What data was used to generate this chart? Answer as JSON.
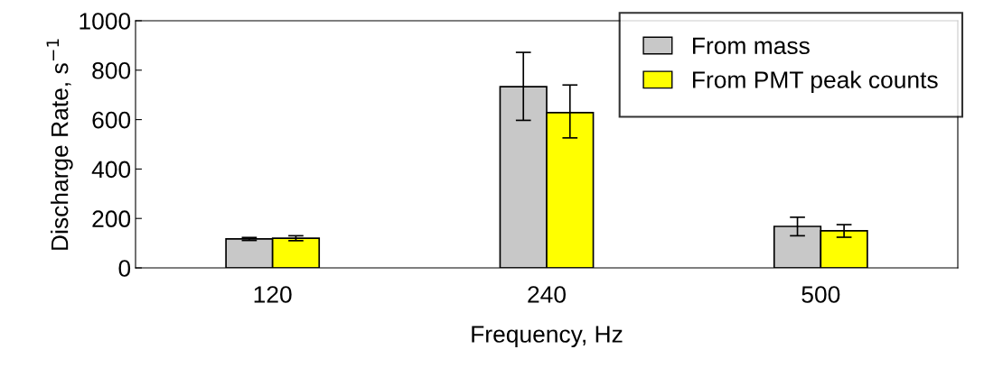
{
  "chart_data": {
    "type": "bar",
    "xlabel": "Frequency, Hz",
    "ylabel": "Discharge Rate, s$^{−1}$",
    "categories": [
      "120",
      "240",
      "500"
    ],
    "series": [
      {
        "name": "From mass",
        "color": "#c8c8c8",
        "values": [
          117,
          733,
          168
        ],
        "errors": [
          6,
          [
            597,
            872
          ],
          [
            130,
            205
          ]
        ]
      },
      {
        "name": "From PMT peak counts",
        "color": "#ffff00",
        "values": [
          120,
          628,
          150
        ],
        "errors": [
          10,
          [
            526,
            740
          ],
          [
            124,
            175
          ]
        ]
      }
    ],
    "ylim": [
      0,
      1000
    ],
    "yticks": [
      0,
      200,
      400,
      600,
      800,
      1000
    ],
    "grid": false,
    "legend": "top right"
  }
}
